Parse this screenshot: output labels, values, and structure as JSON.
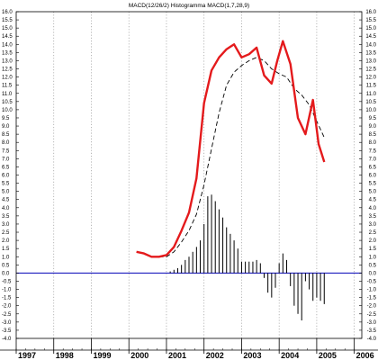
{
  "chart_data": {
    "type": "line",
    "title": "MACD(12/26/2) Histogramma MACD(1,7,28,9)",
    "xlabel": "",
    "ylabel": "",
    "xlim": [
      1997.0,
      2006.2
    ],
    "ylim": [
      -4.0,
      16.0
    ],
    "x_ticks": [
      "1997",
      "1998",
      "1999",
      "2000",
      "2001",
      "2002",
      "2003",
      "2004",
      "2005",
      "2006"
    ],
    "y_ticks": [
      "16.0",
      "15.5",
      "15.0",
      "14.5",
      "14.0",
      "13.5",
      "13.0",
      "12.5",
      "12.0",
      "11.5",
      "11.0",
      "10.5",
      "10.0",
      "9.5",
      "9.0",
      "8.5",
      "8.0",
      "7.5",
      "7.0",
      "6.5",
      "6.0",
      "5.5",
      "5.0",
      "4.5",
      "4.0",
      "3.5",
      "3.0",
      "2.5",
      "2.0",
      "1.5",
      "1.0",
      "0.5",
      "0.0",
      "-0.5",
      "-1.0",
      "-1.5",
      "-2.0",
      "-2.5",
      "-3.0",
      "-3.5",
      "-4.0"
    ],
    "grid": true,
    "zero_line": 0.0,
    "colors": {
      "macd": "#e41a1c",
      "signal": "#000000",
      "histogram": "#000000",
      "zero_line": "#1f1fbf",
      "grid": "#9a9a9a"
    },
    "series": [
      {
        "kind": "line",
        "style": "solid",
        "x": [
          2000.2,
          2000.4,
          2000.6,
          2000.8,
          2001.0,
          2001.2,
          2001.4,
          2001.6,
          2001.8,
          2002.0,
          2002.2,
          2002.4,
          2002.6,
          2002.8,
          2003.0,
          2003.2,
          2003.4,
          2003.6,
          2003.8,
          2003.95,
          2004.1,
          2004.3,
          2004.5,
          2004.7,
          2004.9,
          2005.05,
          2005.2
        ],
        "values": [
          1.3,
          1.2,
          1.0,
          1.0,
          1.1,
          1.6,
          2.6,
          3.7,
          5.8,
          10.4,
          12.4,
          13.2,
          13.7,
          14.0,
          13.2,
          13.4,
          13.8,
          12.1,
          11.6,
          13.0,
          14.2,
          12.8,
          9.5,
          8.5,
          10.6,
          7.9,
          6.8
        ]
      },
      {
        "kind": "line",
        "style": "dashed",
        "x": [
          2000.8,
          2001.0,
          2001.2,
          2001.4,
          2001.6,
          2001.8,
          2002.0,
          2002.2,
          2002.4,
          2002.6,
          2002.8,
          2003.0,
          2003.2,
          2003.4,
          2003.6,
          2003.8,
          2004.0,
          2004.2,
          2004.4,
          2004.6,
          2004.8,
          2005.0,
          2005.2
        ],
        "values": [
          1.0,
          1.0,
          1.3,
          1.9,
          2.6,
          3.6,
          5.4,
          7.6,
          9.8,
          11.5,
          12.3,
          12.7,
          13.0,
          13.2,
          13.0,
          12.5,
          12.2,
          12.0,
          11.3,
          10.9,
          10.3,
          9.3,
          8.3
        ]
      },
      {
        "kind": "histogram",
        "x": [
          2001.1,
          2001.2,
          2001.3,
          2001.4,
          2001.5,
          2001.6,
          2001.7,
          2001.8,
          2001.9,
          2002.0,
          2002.1,
          2002.2,
          2002.3,
          2002.4,
          2002.5,
          2002.6,
          2002.7,
          2002.8,
          2002.9,
          2003.0,
          2003.1,
          2003.2,
          2003.3,
          2003.4,
          2003.5,
          2003.6,
          2003.7,
          2003.8,
          2003.9,
          2004.0,
          2004.1,
          2004.2,
          2004.3,
          2004.4,
          2004.5,
          2004.6,
          2004.7,
          2004.8,
          2004.9,
          2005.0,
          2005.1,
          2005.2
        ],
        "values": [
          0.1,
          0.2,
          0.3,
          0.5,
          0.8,
          1.0,
          1.3,
          1.6,
          2.0,
          3.0,
          4.7,
          4.8,
          4.4,
          3.9,
          3.4,
          2.8,
          2.4,
          2.0,
          1.5,
          0.7,
          0.7,
          0.7,
          0.7,
          0.8,
          0.6,
          -0.3,
          -1.2,
          -1.5,
          -0.9,
          0.6,
          1.2,
          0.8,
          -0.8,
          -2.0,
          -2.5,
          -2.9,
          -0.5,
          -1.0,
          -1.7,
          -1.5,
          -1.7,
          -1.9
        ]
      }
    ]
  }
}
